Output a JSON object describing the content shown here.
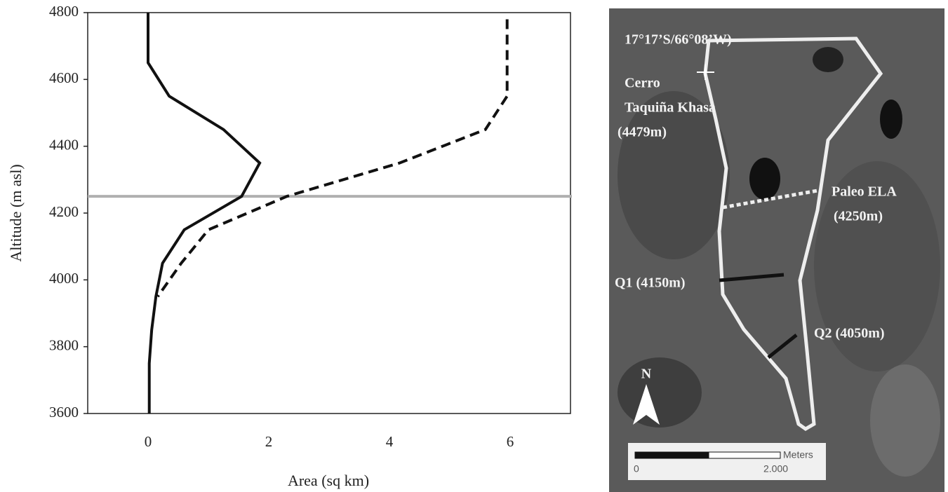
{
  "chart_data": {
    "type": "line",
    "x_label": "Area (sq km)",
    "y_label": "Altitude (m asl)",
    "xlim": [
      -1,
      7
    ],
    "xticks": [
      0,
      2,
      4,
      6
    ],
    "ylim": [
      3600,
      4800
    ],
    "yticks": [
      3600,
      3800,
      4000,
      4200,
      4400,
      4600,
      4800
    ],
    "hline": {
      "value": 4250,
      "color": "#b0b0b0"
    },
    "series": [
      {
        "color": "#111111",
        "style": "solid",
        "x": [
          0,
          0,
          0.35,
          1.25,
          1.85,
          1.55,
          0.6,
          0.24,
          0.13,
          0.06,
          0.02,
          0.02
        ],
        "values": [
          4800,
          4650,
          4550,
          4450,
          4350,
          4250,
          4150,
          4050,
          3950,
          3850,
          3750,
          3600
        ]
      },
      {
        "color": "#111111",
        "style": "dashed",
        "x": [
          5.95,
          5.95,
          5.59,
          4.17,
          2.3,
          1.0,
          0.55,
          0.16
        ],
        "values": [
          4780,
          4550,
          4450,
          4350,
          4250,
          4150,
          4050,
          3950
        ]
      }
    ]
  },
  "map": {
    "coords": "17°17’S/66°08’W)",
    "peak": [
      "Cerro",
      "Taquiña Khasa",
      "(4479m)"
    ],
    "ela": [
      "Paleo ELA",
      "(4250m)"
    ],
    "q1": "Q1 (4150m)",
    "q2": "Q2 (4050m)",
    "north": "N",
    "scale": {
      "unit": "Meters",
      "start": "0",
      "end": "2.000"
    }
  }
}
